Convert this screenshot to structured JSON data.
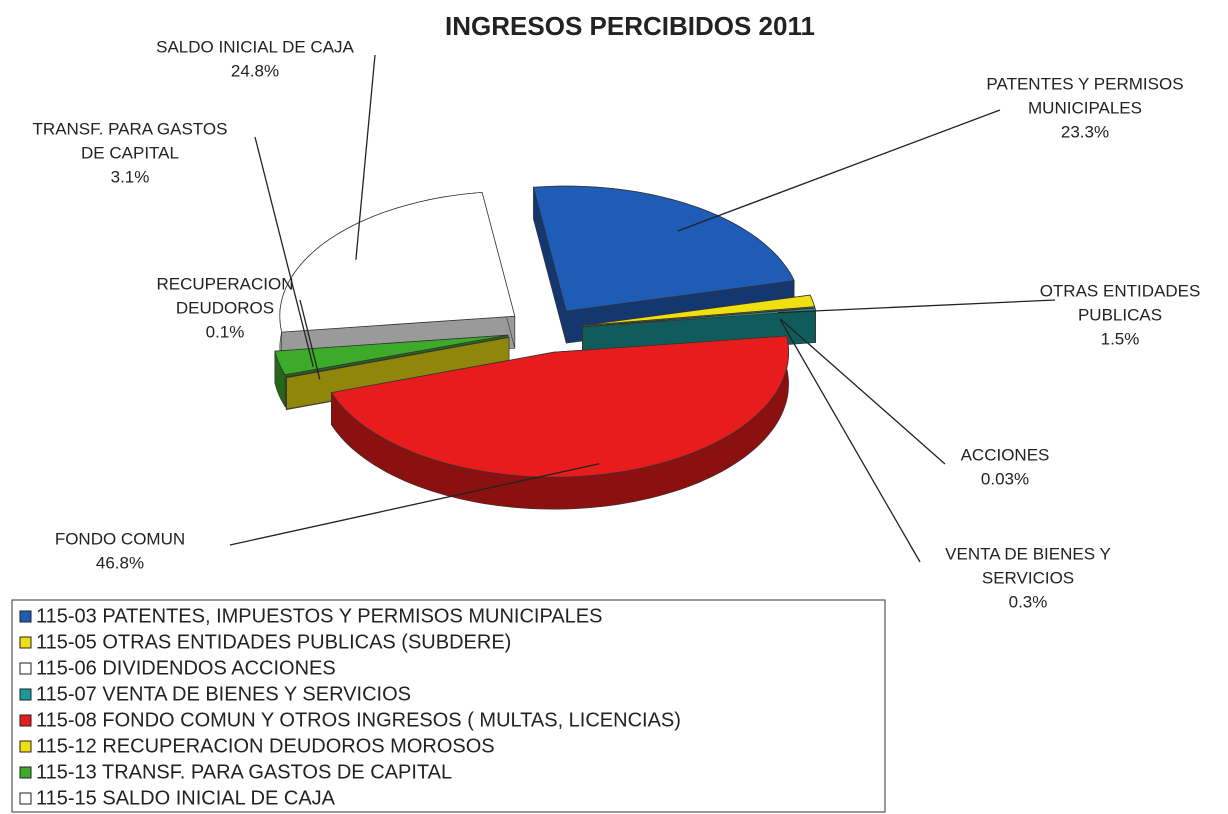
{
  "chart_data": {
    "type": "pie",
    "title": "INGRESOS PERCIBIDOS 2011",
    "categories": [
      "115-03 PATENTES, IMPUESTOS  Y PERMISOS MUNICIPALES",
      "115-05 OTRAS ENTIDADES PUBLICAS (SUBDERE)",
      "115-06 DIVIDENDOS ACCIONES",
      "115-07 VENTA DE BIENES Y SERVICIOS",
      "115-08 FONDO COMUN Y OTROS INGRESOS ( MULTAS, LICENCIAS)",
      "115-12 RECUPERACION DEUDOROS MOROSOS",
      "115-13 TRANSF. PARA GASTOS DE CAPITAL",
      "115-15 SALDO INICIAL DE CAJA"
    ],
    "slice_labels": [
      [
        "PATENTES  Y PERMISOS",
        "MUNICIPALES"
      ],
      [
        "OTRAS ENTIDADES",
        "PUBLICAS"
      ],
      [
        "ACCIONES"
      ],
      [
        "VENTA DE BIENES Y",
        "SERVICIOS"
      ],
      [
        "FONDO COMUN"
      ],
      [
        "RECUPERACION",
        "DEUDOROS"
      ],
      [
        "TRANSF. PARA GASTOS",
        "DE CAPITAL"
      ],
      [
        "SALDO INICIAL DE CAJA"
      ]
    ],
    "values": [
      23.3,
      1.5,
      0.03,
      0.3,
      46.8,
      0.1,
      3.1,
      24.8
    ],
    "value_labels": [
      "23.3%",
      "1.5%",
      "0.03%",
      "0.3%",
      "46.8%",
      "0.1%",
      "3.1%",
      "24.8%"
    ],
    "colors": [
      "#1f5cb8",
      "#f0e010",
      "#ffffff",
      "#1a9a9a",
      "#e81c1c",
      "#f0e010",
      "#3daa2a",
      "#ffffff"
    ]
  }
}
